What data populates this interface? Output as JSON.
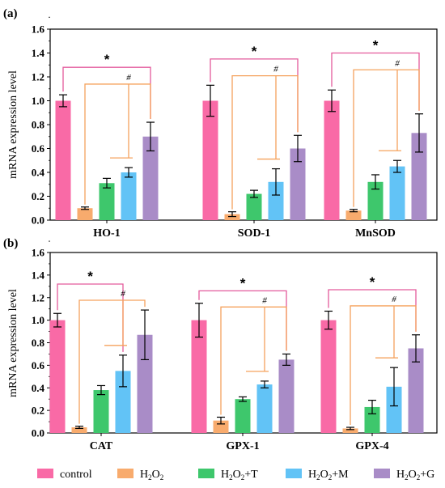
{
  "chart_data": [
    {
      "type": "bar",
      "panel_label": "(a)",
      "ylabel": "mRNA expression level",
      "ylim": [
        0,
        1.6
      ],
      "yticks": [
        "0.0",
        "0.2",
        "0.4",
        "0.6",
        "0.8",
        "1.0",
        "1.2",
        "1.4",
        "1.6"
      ],
      "categories": [
        "HO-1",
        "SOD-1",
        "MnSOD"
      ],
      "series": [
        {
          "name": "control",
          "values": [
            1.0,
            1.0,
            1.0
          ],
          "errors": [
            0.05,
            0.13,
            0.09
          ],
          "color": "#f96aa6"
        },
        {
          "name": "H2O2",
          "values": [
            0.1,
            0.05,
            0.08
          ],
          "errors": [
            0.01,
            0.02,
            0.01
          ],
          "color": "#f8ab6d"
        },
        {
          "name": "H2O2+T",
          "values": [
            0.31,
            0.22,
            0.32
          ],
          "errors": [
            0.04,
            0.03,
            0.06
          ],
          "color": "#3ec76c"
        },
        {
          "name": "H2O2+M",
          "values": [
            0.4,
            0.32,
            0.45
          ],
          "errors": [
            0.04,
            0.11,
            0.05
          ],
          "color": "#62c3f6"
        },
        {
          "name": "H2O2+G",
          "values": [
            0.7,
            0.6,
            0.73
          ],
          "errors": [
            0.12,
            0.11,
            0.16
          ],
          "color": "#a98cc7"
        }
      ],
      "annotations": {
        "star": "*",
        "hash": "#"
      }
    },
    {
      "type": "bar",
      "panel_label": "(b)",
      "ylabel": "mRNA expression level",
      "ylim": [
        0,
        1.6
      ],
      "yticks": [
        "0.0",
        "0.2",
        "0.4",
        "0.6",
        "0.8",
        "1.0",
        "1.2",
        "1.4",
        "1.6"
      ],
      "categories": [
        "CAT",
        "GPX-1",
        "GPX-4"
      ],
      "series": [
        {
          "name": "control",
          "values": [
            1.0,
            1.0,
            1.0
          ],
          "errors": [
            0.06,
            0.15,
            0.08
          ],
          "color": "#f96aa6"
        },
        {
          "name": "H2O2",
          "values": [
            0.05,
            0.11,
            0.04
          ],
          "errors": [
            0.01,
            0.03,
            0.01
          ],
          "color": "#f8ab6d"
        },
        {
          "name": "H2O2+T",
          "values": [
            0.38,
            0.3,
            0.23
          ],
          "errors": [
            0.04,
            0.02,
            0.06
          ],
          "color": "#3ec76c"
        },
        {
          "name": "H2O2+M",
          "values": [
            0.55,
            0.43,
            0.41
          ],
          "errors": [
            0.14,
            0.03,
            0.17
          ],
          "color": "#62c3f6"
        },
        {
          "name": "H2O2+G",
          "values": [
            0.87,
            0.65,
            0.75
          ],
          "errors": [
            0.22,
            0.05,
            0.12
          ],
          "color": "#a98cc7"
        }
      ],
      "annotations": {
        "star": "*",
        "hash": "#"
      }
    }
  ],
  "legend": {
    "items": [
      {
        "label": "control",
        "label_sub": "",
        "color": "#f96aa6"
      },
      {
        "label": "H",
        "label_sub": "2",
        "label_rest": "O",
        "label_sub2": "2",
        "label_tail": "",
        "color": "#f8ab6d"
      },
      {
        "label": "H",
        "label_sub": "2",
        "label_rest": "O",
        "label_sub2": "2",
        "label_tail": "+T",
        "color": "#3ec76c"
      },
      {
        "label": "H",
        "label_sub": "2",
        "label_rest": "O",
        "label_sub2": "2",
        "label_tail": "+M",
        "color": "#62c3f6"
      },
      {
        "label": "H",
        "label_sub": "2",
        "label_rest": "O",
        "label_sub2": "2",
        "label_tail": "+G",
        "color": "#a98cc7"
      }
    ]
  },
  "colors": {
    "star_bracket": "#e35a9c",
    "hash_bracket": "#f5a25d",
    "axis": "#000000"
  }
}
